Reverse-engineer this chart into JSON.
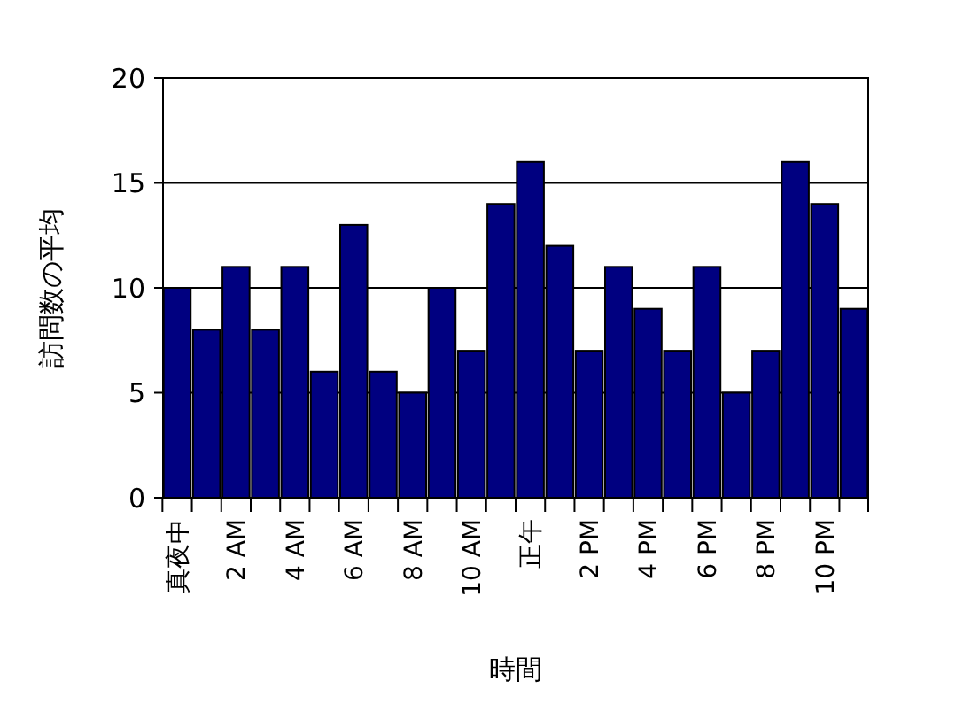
{
  "chart_data": {
    "type": "bar",
    "xlabel": "時間",
    "ylabel": "訪問数の平均",
    "categories": [
      "真夜中",
      null,
      "2 AM",
      null,
      "4 AM",
      null,
      "6 AM",
      null,
      "8 AM",
      null,
      "10 AM",
      null,
      "正午",
      null,
      "2 PM",
      null,
      "4 PM",
      null,
      "6 PM",
      null,
      "8 PM",
      null,
      "10 PM",
      null
    ],
    "values": [
      10,
      8,
      11,
      8,
      11,
      6,
      13,
      6,
      5,
      10,
      7,
      14,
      16,
      12,
      7,
      11,
      9,
      7,
      11,
      5,
      7,
      16,
      14,
      9
    ],
    "color": "#000080",
    "ylim": [
      0,
      20
    ],
    "yticks": [
      0,
      5,
      10,
      15,
      20
    ],
    "grid": "y"
  }
}
